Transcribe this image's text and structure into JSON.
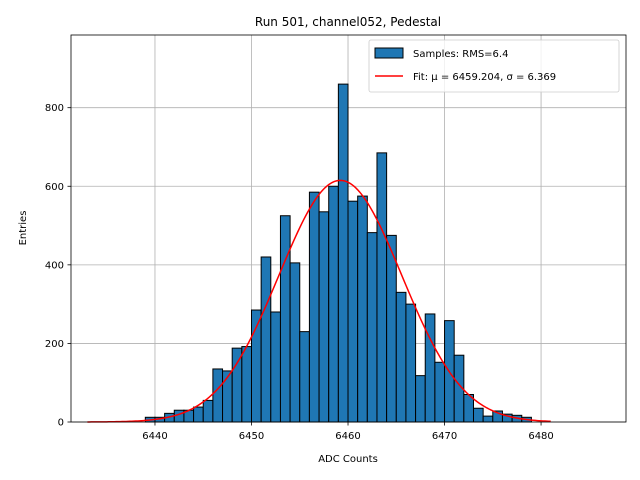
{
  "chart_data": {
    "type": "bar",
    "title": "Run 501, channel052, Pedestal",
    "xlabel": "ADC Counts",
    "ylabel": "Entries",
    "xlim": [
      6431.3,
      6488.8
    ],
    "ylim": [
      0,
      985
    ],
    "xticks": [
      6440,
      6450,
      6460,
      6470,
      6480
    ],
    "yticks": [
      0,
      200,
      400,
      600,
      800
    ],
    "grid": true,
    "legend_position": "top-right",
    "bar_color": "#1f77b4",
    "bar_edge_color": "#000000",
    "fit_color": "#ff0000",
    "series": [
      {
        "name": "Samples: RMS=6.4",
        "bin_width": 1,
        "bins_start": [
          6439,
          6440,
          6441,
          6442,
          6443,
          6444,
          6445,
          6446,
          6447,
          6448,
          6449,
          6450,
          6451,
          6452,
          6453,
          6454,
          6455,
          6456,
          6457,
          6458,
          6459,
          6460,
          6461,
          6462,
          6463,
          6464,
          6465,
          6466,
          6467,
          6468,
          6469,
          6470,
          6471,
          6472,
          6473,
          6474,
          6475,
          6476,
          6477,
          6478
        ],
        "values": [
          12,
          12,
          22,
          30,
          30,
          38,
          55,
          135,
          130,
          188,
          192,
          285,
          420,
          280,
          525,
          405,
          230,
          585,
          535,
          600,
          860,
          562,
          575,
          482,
          685,
          475,
          330,
          300,
          118,
          275,
          152,
          258,
          170,
          70,
          35,
          15,
          28,
          20,
          17,
          12
        ]
      },
      {
        "name": "Fit: μ = 6459.204, σ = 6.369",
        "type": "gaussian-fit",
        "mu": 6459.204,
        "sigma": 6.369,
        "peak": 615,
        "x_range": [
          6433,
          6481
        ]
      }
    ],
    "legend": [
      {
        "label": "Samples: RMS=6.4",
        "kind": "patch"
      },
      {
        "label": "Fit: μ = 6459.204, σ = 6.369",
        "kind": "line"
      }
    ]
  }
}
